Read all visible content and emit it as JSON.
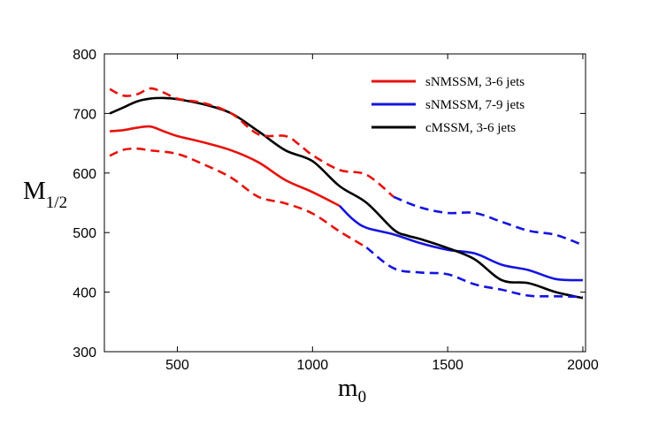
{
  "chart_data": {
    "type": "line",
    "xlabel_main": "m",
    "xlabel_sub": "0",
    "ylabel_main": "M",
    "ylabel_sub": "1/2",
    "xlim": [
      230,
      2010
    ],
    "ylim": [
      300,
      800
    ],
    "xticks": [
      500,
      1000,
      1500,
      2000
    ],
    "yticks": [
      300,
      400,
      500,
      600,
      700,
      800
    ],
    "grid": false,
    "legend_position": "top-right",
    "legend": [
      {
        "label": "sNMSSM, 3-6 jets",
        "color": "#e8120c"
      },
      {
        "label": "sNMSSM, 7-9 jets",
        "color": "#1414e0"
      },
      {
        "label": "cMSSM, 3-6 jets",
        "color": "#000000"
      }
    ],
    "series": [
      {
        "name": "sNMSSM, 3-6 jets",
        "color": "#e8120c",
        "style": "solid",
        "points": [
          [
            250,
            670
          ],
          [
            300,
            672
          ],
          [
            350,
            676
          ],
          [
            400,
            678
          ],
          [
            450,
            670
          ],
          [
            500,
            662
          ],
          [
            600,
            651
          ],
          [
            700,
            638
          ],
          [
            800,
            618
          ],
          [
            900,
            588
          ],
          [
            1000,
            568
          ],
          [
            1100,
            545
          ]
        ]
      },
      {
        "name": "sNMSSM, 7-9 jets",
        "color": "#1414e0",
        "style": "solid",
        "points": [
          [
            1100,
            545
          ],
          [
            1150,
            522
          ],
          [
            1200,
            508
          ],
          [
            1300,
            497
          ],
          [
            1400,
            482
          ],
          [
            1500,
            471
          ],
          [
            1600,
            465
          ],
          [
            1700,
            446
          ],
          [
            1800,
            437
          ],
          [
            1900,
            422
          ],
          [
            2000,
            420
          ]
        ]
      },
      {
        "name": "cMSSM, 3-6 jets",
        "color": "#000000",
        "style": "solid",
        "points": [
          [
            250,
            700
          ],
          [
            300,
            710
          ],
          [
            350,
            720
          ],
          [
            400,
            725
          ],
          [
            450,
            726
          ],
          [
            500,
            724
          ],
          [
            600,
            715
          ],
          [
            700,
            700
          ],
          [
            800,
            670
          ],
          [
            900,
            638
          ],
          [
            1000,
            620
          ],
          [
            1100,
            578
          ],
          [
            1200,
            550
          ],
          [
            1300,
            505
          ],
          [
            1350,
            495
          ],
          [
            1400,
            489
          ],
          [
            1500,
            474
          ],
          [
            1600,
            455
          ],
          [
            1700,
            420
          ],
          [
            1800,
            415
          ],
          [
            1900,
            400
          ],
          [
            2000,
            390
          ]
        ]
      },
      {
        "name": "sNMSSM, 3-6 jets",
        "color": "#e8120c",
        "style": "dashed",
        "points": [
          [
            250,
            741
          ],
          [
            300,
            730
          ],
          [
            350,
            732
          ],
          [
            400,
            742
          ],
          [
            450,
            735
          ],
          [
            500,
            725
          ],
          [
            600,
            717
          ],
          [
            700,
            700
          ],
          [
            800,
            665
          ],
          [
            900,
            662
          ],
          [
            950,
            648
          ],
          [
            1000,
            630
          ],
          [
            1100,
            605
          ],
          [
            1200,
            597
          ],
          [
            1300,
            560
          ]
        ]
      },
      {
        "name": "sNMSSM, 7-9 jets",
        "color": "#1414e0",
        "style": "dashed",
        "points": [
          [
            1300,
            560
          ],
          [
            1400,
            542
          ],
          [
            1500,
            533
          ],
          [
            1600,
            533
          ],
          [
            1700,
            518
          ],
          [
            1800,
            503
          ],
          [
            1900,
            496
          ],
          [
            2000,
            479
          ]
        ]
      },
      {
        "name": "sNMSSM, 3-6 jets",
        "color": "#e8120c",
        "style": "dashed",
        "points": [
          [
            250,
            629
          ],
          [
            300,
            639
          ],
          [
            350,
            641
          ],
          [
            400,
            638
          ],
          [
            500,
            632
          ],
          [
            600,
            614
          ],
          [
            700,
            592
          ],
          [
            800,
            560
          ],
          [
            900,
            549
          ],
          [
            1000,
            532
          ],
          [
            1100,
            502
          ],
          [
            1200,
            475
          ]
        ]
      },
      {
        "name": "sNMSSM, 7-9 jets",
        "color": "#1414e0",
        "style": "dashed",
        "points": [
          [
            1200,
            475
          ],
          [
            1300,
            440
          ],
          [
            1400,
            433
          ],
          [
            1500,
            430
          ],
          [
            1600,
            413
          ],
          [
            1700,
            404
          ],
          [
            1800,
            394
          ],
          [
            1900,
            393
          ],
          [
            2000,
            392
          ]
        ]
      }
    ]
  }
}
